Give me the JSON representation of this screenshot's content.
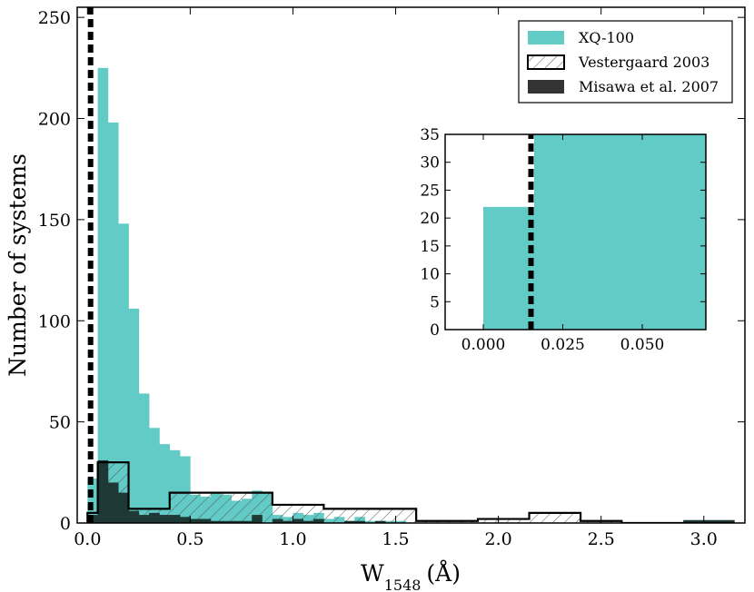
{
  "chart_data": {
    "type": "bar",
    "title": "",
    "xlabel": "W",
    "xlabel_subscript": "1548",
    "xlabel_unit": "(Å)",
    "ylabel": "Number of systems",
    "xlim": [
      -0.05,
      3.2
    ],
    "ylim": [
      0,
      255
    ],
    "xticks": [
      0.0,
      0.5,
      1.0,
      1.5,
      2.0,
      2.5,
      3.0
    ],
    "xtick_labels": [
      "0.0",
      "0.5",
      "1.0",
      "1.5",
      "2.0",
      "2.5",
      "3.0"
    ],
    "yticks": [
      0,
      50,
      100,
      150,
      200,
      250
    ],
    "ytick_labels": [
      "0",
      "50",
      "100",
      "150",
      "200",
      "250"
    ],
    "threshold_line": {
      "x": 0.015,
      "style": "dashed",
      "color": "#000000"
    },
    "series": [
      {
        "name": "XQ-100",
        "color": "#62cbc5",
        "style": "filled",
        "bin_width": 0.05,
        "bin_starts": [
          0.0,
          0.05,
          0.1,
          0.15,
          0.2,
          0.25,
          0.3,
          0.35,
          0.4,
          0.45,
          0.5,
          0.55,
          0.6,
          0.65,
          0.7,
          0.75,
          0.8,
          0.85,
          0.9,
          0.95,
          1.0,
          1.05,
          1.1,
          1.15,
          1.2,
          1.25,
          1.3,
          1.35,
          1.4,
          1.45,
          1.5,
          1.55
        ],
        "counts": [
          22,
          225,
          198,
          148,
          106,
          64,
          47,
          39,
          36,
          33,
          14,
          13,
          15,
          14,
          11,
          12,
          16,
          15,
          4,
          3,
          5,
          4,
          5,
          2,
          3,
          1,
          3,
          1,
          1,
          1,
          1,
          0
        ]
      },
      {
        "name": "Vestergaard 2003",
        "color": "#000000",
        "style": "hatched-outline",
        "bin_edges": [
          0.0,
          0.05,
          0.2,
          0.4,
          0.9,
          1.15,
          1.6,
          1.9,
          2.15,
          2.4,
          2.6,
          3.15
        ],
        "counts": [
          5,
          30,
          7,
          15,
          9,
          7,
          1,
          2,
          5,
          1,
          0
        ]
      },
      {
        "name": "Misawa et al. 2007",
        "color": "#333333",
        "style": "filled-dark",
        "bin_width": 0.05,
        "bin_starts": [
          0.0,
          0.05,
          0.1,
          0.15,
          0.2,
          0.25,
          0.3,
          0.35,
          0.4,
          0.45,
          0.5,
          0.55,
          0.6,
          0.65,
          0.7,
          0.75,
          0.8,
          0.85,
          0.9,
          0.95,
          1.0,
          1.05,
          1.1,
          1.15,
          1.2,
          1.25,
          1.3,
          1.35,
          1.4
        ],
        "counts": [
          4,
          31,
          20,
          15,
          6,
          4,
          5,
          4,
          4,
          3,
          2,
          2,
          1,
          1,
          1,
          1,
          4,
          0,
          2,
          1,
          2,
          1,
          2,
          0,
          0,
          1,
          1,
          0,
          1
        ],
        "extra_bars": [
          {
            "start": 2.9,
            "end": 3.15,
            "count": 1
          }
        ]
      }
    ],
    "legend": {
      "position": "top-right",
      "entries": [
        "XQ-100",
        "Vestergaard 2003",
        "Misawa et al. 2007"
      ]
    },
    "inset": {
      "xlim": [
        -0.012,
        0.07
      ],
      "ylim": [
        0,
        35
      ],
      "xticks": [
        0.0,
        0.025,
        0.05
      ],
      "xtick_labels": [
        "0.000",
        "0.025",
        "0.050"
      ],
      "yticks": [
        0,
        5,
        10,
        15,
        20,
        25,
        30,
        35
      ],
      "ytick_labels": [
        "0",
        "5",
        "10",
        "15",
        "20",
        "25",
        "30",
        "35"
      ],
      "bars": [
        {
          "start": 0.0,
          "end": 0.016,
          "count": 22
        },
        {
          "start": 0.016,
          "end": 0.07,
          "count": 35
        }
      ],
      "threshold_x": 0.015
    }
  }
}
